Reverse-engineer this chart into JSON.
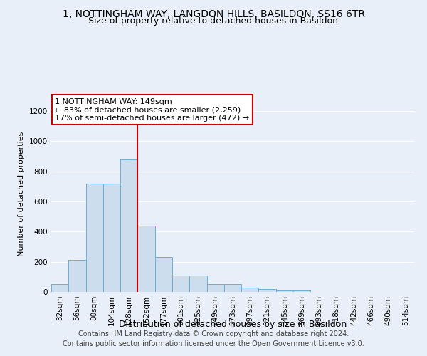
{
  "title": "1, NOTTINGHAM WAY, LANGDON HILLS, BASILDON, SS16 6TR",
  "subtitle": "Size of property relative to detached houses in Basildon",
  "xlabel": "Distribution of detached houses by size in Basildon",
  "ylabel": "Number of detached properties",
  "footer_line1": "Contains HM Land Registry data © Crown copyright and database right 2024.",
  "footer_line2": "Contains public sector information licensed under the Open Government Licence v3.0.",
  "bar_labels": [
    "32sqm",
    "56sqm",
    "80sqm",
    "104sqm",
    "128sqm",
    "152sqm",
    "177sqm",
    "201sqm",
    "225sqm",
    "249sqm",
    "273sqm",
    "297sqm",
    "321sqm",
    "345sqm",
    "369sqm",
    "393sqm",
    "418sqm",
    "442sqm",
    "466sqm",
    "490sqm",
    "514sqm"
  ],
  "bar_values": [
    50,
    215,
    720,
    720,
    880,
    440,
    230,
    110,
    110,
    50,
    50,
    30,
    20,
    10,
    10,
    0,
    0,
    0,
    0,
    0,
    0
  ],
  "bar_color": "#ccdded",
  "bar_edge_color": "#6aaed6",
  "vline_position": 4.5,
  "vline_color": "#cc0000",
  "annotation_text": "1 NOTTINGHAM WAY: 149sqm\n← 83% of detached houses are smaller (2,259)\n17% of semi-detached houses are larger (472) →",
  "annotation_box_facecolor": "#ffffff",
  "annotation_box_edgecolor": "#cc0000",
  "ylim": [
    0,
    1300
  ],
  "yticks": [
    0,
    200,
    400,
    600,
    800,
    1000,
    1200
  ],
  "background_color": "#e8eff8",
  "grid_color": "#ffffff",
  "title_fontsize": 10,
  "subtitle_fontsize": 9,
  "ylabel_fontsize": 8,
  "xlabel_fontsize": 9,
  "tick_fontsize": 7.5,
  "annotation_fontsize": 8,
  "footer_fontsize": 7
}
